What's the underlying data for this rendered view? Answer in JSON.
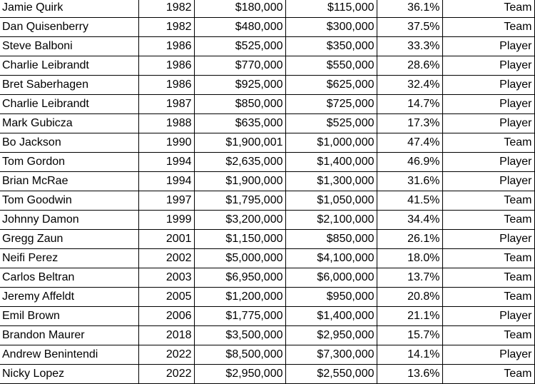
{
  "rows": [
    {
      "name": "Jamie Quirk",
      "year": "1982",
      "requested": "$180,000",
      "offered": "$115,000",
      "diff": "36.1%",
      "winner": "Team"
    },
    {
      "name": "Dan Quisenberry",
      "year": "1982",
      "requested": "$480,000",
      "offered": "$300,000",
      "diff": "37.5%",
      "winner": "Team"
    },
    {
      "name": "Steve Balboni",
      "year": "1986",
      "requested": "$525,000",
      "offered": "$350,000",
      "diff": "33.3%",
      "winner": "Player"
    },
    {
      "name": "Charlie Leibrandt",
      "year": "1986",
      "requested": "$770,000",
      "offered": "$550,000",
      "diff": "28.6%",
      "winner": "Player"
    },
    {
      "name": "Bret Saberhagen",
      "year": "1986",
      "requested": "$925,000",
      "offered": "$625,000",
      "diff": "32.4%",
      "winner": "Player"
    },
    {
      "name": "Charlie Leibrandt",
      "year": "1987",
      "requested": "$850,000",
      "offered": "$725,000",
      "diff": "14.7%",
      "winner": "Player"
    },
    {
      "name": "Mark Gubicza",
      "year": "1988",
      "requested": "$635,000",
      "offered": "$525,000",
      "diff": "17.3%",
      "winner": "Player"
    },
    {
      "name": "Bo Jackson",
      "year": "1990",
      "requested": "$1,900,001",
      "offered": "$1,000,000",
      "diff": "47.4%",
      "winner": "Team"
    },
    {
      "name": "Tom Gordon",
      "year": "1994",
      "requested": "$2,635,000",
      "offered": "$1,400,000",
      "diff": "46.9%",
      "winner": "Player"
    },
    {
      "name": "Brian McRae",
      "year": "1994",
      "requested": "$1,900,000",
      "offered": "$1,300,000",
      "diff": "31.6%",
      "winner": "Player"
    },
    {
      "name": "Tom Goodwin",
      "year": "1997",
      "requested": "$1,795,000",
      "offered": "$1,050,000",
      "diff": "41.5%",
      "winner": "Team"
    },
    {
      "name": "Johnny Damon",
      "year": "1999",
      "requested": "$3,200,000",
      "offered": "$2,100,000",
      "diff": "34.4%",
      "winner": "Team"
    },
    {
      "name": "Gregg Zaun",
      "year": "2001",
      "requested": "$1,150,000",
      "offered": "$850,000",
      "diff": "26.1%",
      "winner": "Player"
    },
    {
      "name": "Neifi Perez",
      "year": "2002",
      "requested": "$5,000,000",
      "offered": "$4,100,000",
      "diff": "18.0%",
      "winner": "Team"
    },
    {
      "name": "Carlos Beltran",
      "year": "2003",
      "requested": "$6,950,000",
      "offered": "$6,000,000",
      "diff": "13.7%",
      "winner": "Team"
    },
    {
      "name": "Jeremy Affeldt",
      "year": "2005",
      "requested": "$1,200,000",
      "offered": "$950,000",
      "diff": "20.8%",
      "winner": "Team"
    },
    {
      "name": "Emil Brown",
      "year": "2006",
      "requested": "$1,775,000",
      "offered": "$1,400,000",
      "diff": "21.1%",
      "winner": "Player"
    },
    {
      "name": "Brandon Maurer",
      "year": "2018",
      "requested": "$3,500,000",
      "offered": "$2,950,000",
      "diff": "15.7%",
      "winner": "Team"
    },
    {
      "name": "Andrew Benintendi",
      "year": "2022",
      "requested": "$8,500,000",
      "offered": "$7,300,000",
      "diff": "14.1%",
      "winner": "Player"
    },
    {
      "name": "Nicky Lopez",
      "year": "2022",
      "requested": "$2,950,000",
      "offered": "$2,550,000",
      "diff": "13.6%",
      "winner": "Team"
    }
  ]
}
